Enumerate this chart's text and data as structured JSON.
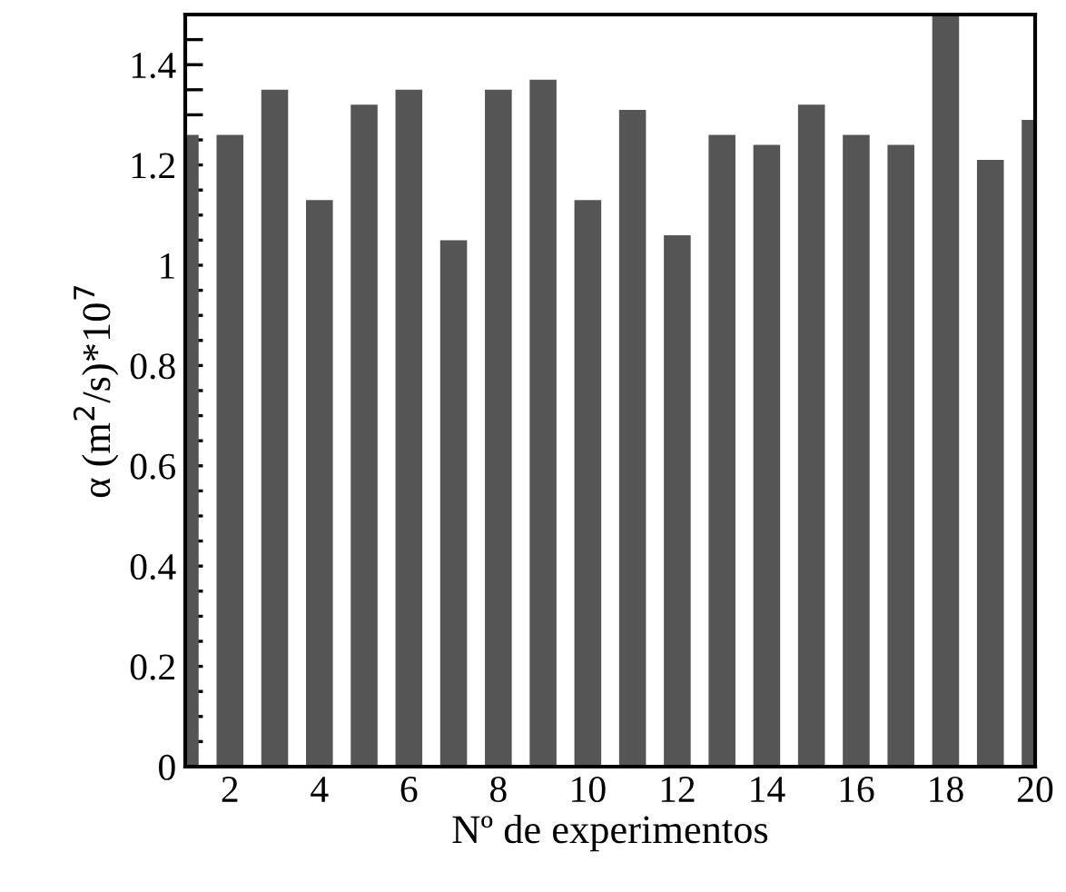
{
  "chart_data": {
    "type": "bar",
    "xlabel": "Nº de experimentos",
    "ylabel": "α (m$^{2}$/s)*10$^{7}$",
    "x": [
      1,
      2,
      3,
      4,
      5,
      6,
      7,
      8,
      9,
      10,
      11,
      12,
      13,
      14,
      15,
      16,
      17,
      18,
      19,
      20
    ],
    "values": [
      1.26,
      1.26,
      1.35,
      1.13,
      1.32,
      1.35,
      1.05,
      1.35,
      1.37,
      1.13,
      1.31,
      1.06,
      1.26,
      1.24,
      1.32,
      1.26,
      1.24,
      1.5,
      1.21,
      1.29
    ],
    "color": "#555555",
    "xlim": [
      1,
      20
    ],
    "xticks": [
      {
        "value": 1,
        "label": null
      },
      2,
      {
        "value": 3,
        "label": null
      },
      4,
      {
        "value": 5,
        "label": null
      },
      6,
      {
        "value": 7,
        "label": null
      },
      8,
      {
        "value": 9,
        "label": null
      },
      10,
      {
        "value": 11,
        "label": null
      },
      12,
      {
        "value": 13,
        "label": null
      },
      14,
      {
        "value": 15,
        "label": null
      },
      16,
      {
        "value": 17,
        "label": null
      },
      18,
      {
        "value": 19,
        "label": null
      },
      20
    ],
    "ylim": [
      0,
      1.5
    ],
    "yticks": [
      0,
      {
        "value": 0.05,
        "label": null
      },
      {
        "value": 0.1,
        "label": null
      },
      {
        "value": 0.15,
        "label": null
      },
      0.2,
      {
        "value": 0.25,
        "label": null
      },
      {
        "value": 0.3,
        "label": null
      },
      {
        "value": 0.35,
        "label": null
      },
      0.4,
      {
        "value": 0.45,
        "label": null
      },
      {
        "value": 0.5,
        "label": null
      },
      {
        "value": 0.55,
        "label": null
      },
      0.6,
      {
        "value": 0.65,
        "label": null
      },
      {
        "value": 0.7,
        "label": null
      },
      {
        "value": 0.75,
        "label": null
      },
      0.8,
      {
        "value": 0.85,
        "label": null
      },
      {
        "value": 0.9,
        "label": null
      },
      {
        "value": 0.95,
        "label": null
      },
      1,
      {
        "value": 1.05,
        "label": null
      },
      {
        "value": 1.1,
        "label": null
      },
      {
        "value": 1.15,
        "label": null
      },
      1.2,
      {
        "value": 1.25,
        "label": null
      },
      {
        "value": 1.3,
        "label": null
      },
      {
        "value": 1.35,
        "label": null
      },
      1.4,
      {
        "value": 1.45,
        "label": null
      }
    ],
    "grid": false,
    "legend": false
  }
}
